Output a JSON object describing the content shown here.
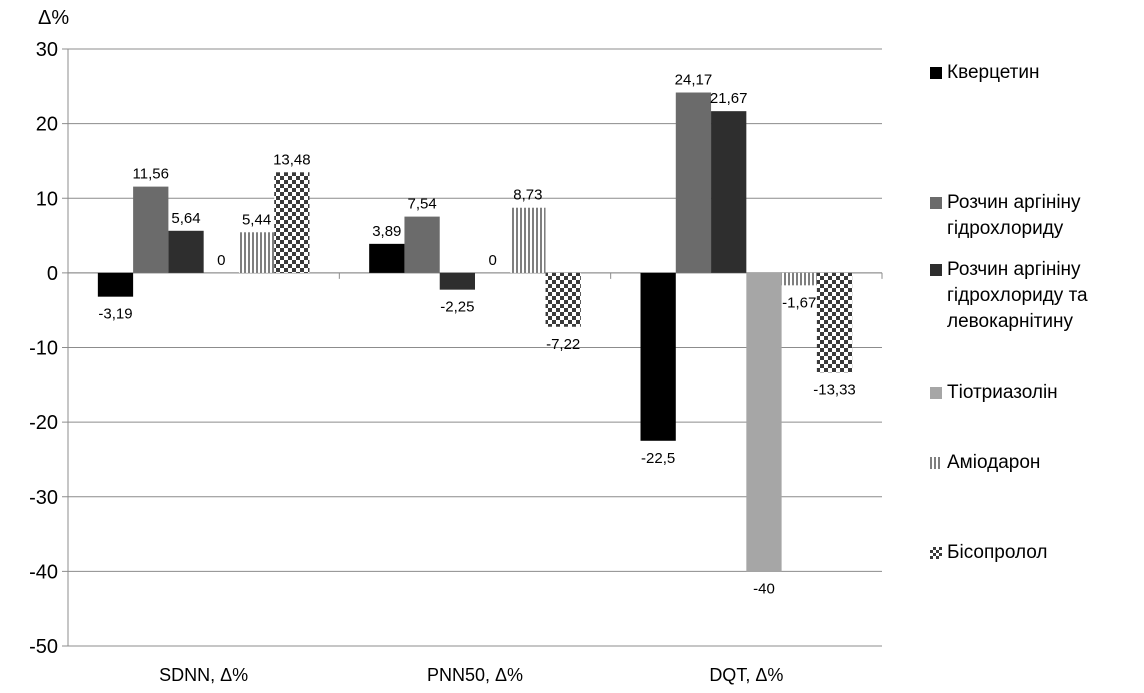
{
  "chart_data": {
    "type": "bar",
    "ylabel": "Δ%",
    "ylim": [
      -50,
      30
    ],
    "yticks": [
      30,
      20,
      10,
      0,
      -10,
      -20,
      -30,
      -40,
      -50
    ],
    "grid": true,
    "legend_position": "right",
    "categories": [
      "SDNN, Δ%",
      "PNN50, Δ%",
      "DQT, Δ%"
    ],
    "series": [
      {
        "name": "Кверцетин",
        "values": [
          -3.19,
          3.89,
          -22.5
        ],
        "labels": [
          "-3,19",
          "3,89",
          "-22,5"
        ],
        "color": "#000000",
        "pattern": "solid"
      },
      {
        "name": "Розчин аргініну гідрохлориду",
        "values": [
          11.56,
          7.54,
          24.17
        ],
        "labels": [
          "11,56",
          "7,54",
          "24,17"
        ],
        "color": "#6b6b6b",
        "pattern": "solid"
      },
      {
        "name": "Розчин аргініну гідрохлориду та левокарнітину",
        "values": [
          5.64,
          -2.25,
          21.67
        ],
        "labels": [
          "5,64",
          "-2,25",
          "21,67"
        ],
        "color": "#2e2e2e",
        "pattern": "solid"
      },
      {
        "name": "Тіотриазолін",
        "values": [
          0,
          0,
          -40
        ],
        "labels": [
          "0",
          "0",
          "-40"
        ],
        "color": "#a6a6a6",
        "pattern": "solid"
      },
      {
        "name": "Аміодарон",
        "values": [
          5.44,
          8.73,
          -1.67
        ],
        "labels": [
          "5,44",
          "8,73",
          "-1,67"
        ],
        "color": "#7f7f7f",
        "pattern": "vertical-lines"
      },
      {
        "name": "Бісопролол",
        "values": [
          13.48,
          -7.22,
          -13.33
        ],
        "labels": [
          "13,48",
          "-7,22",
          "-13,33"
        ],
        "color": "#3a3a3a",
        "pattern": "checkerboard"
      }
    ]
  }
}
